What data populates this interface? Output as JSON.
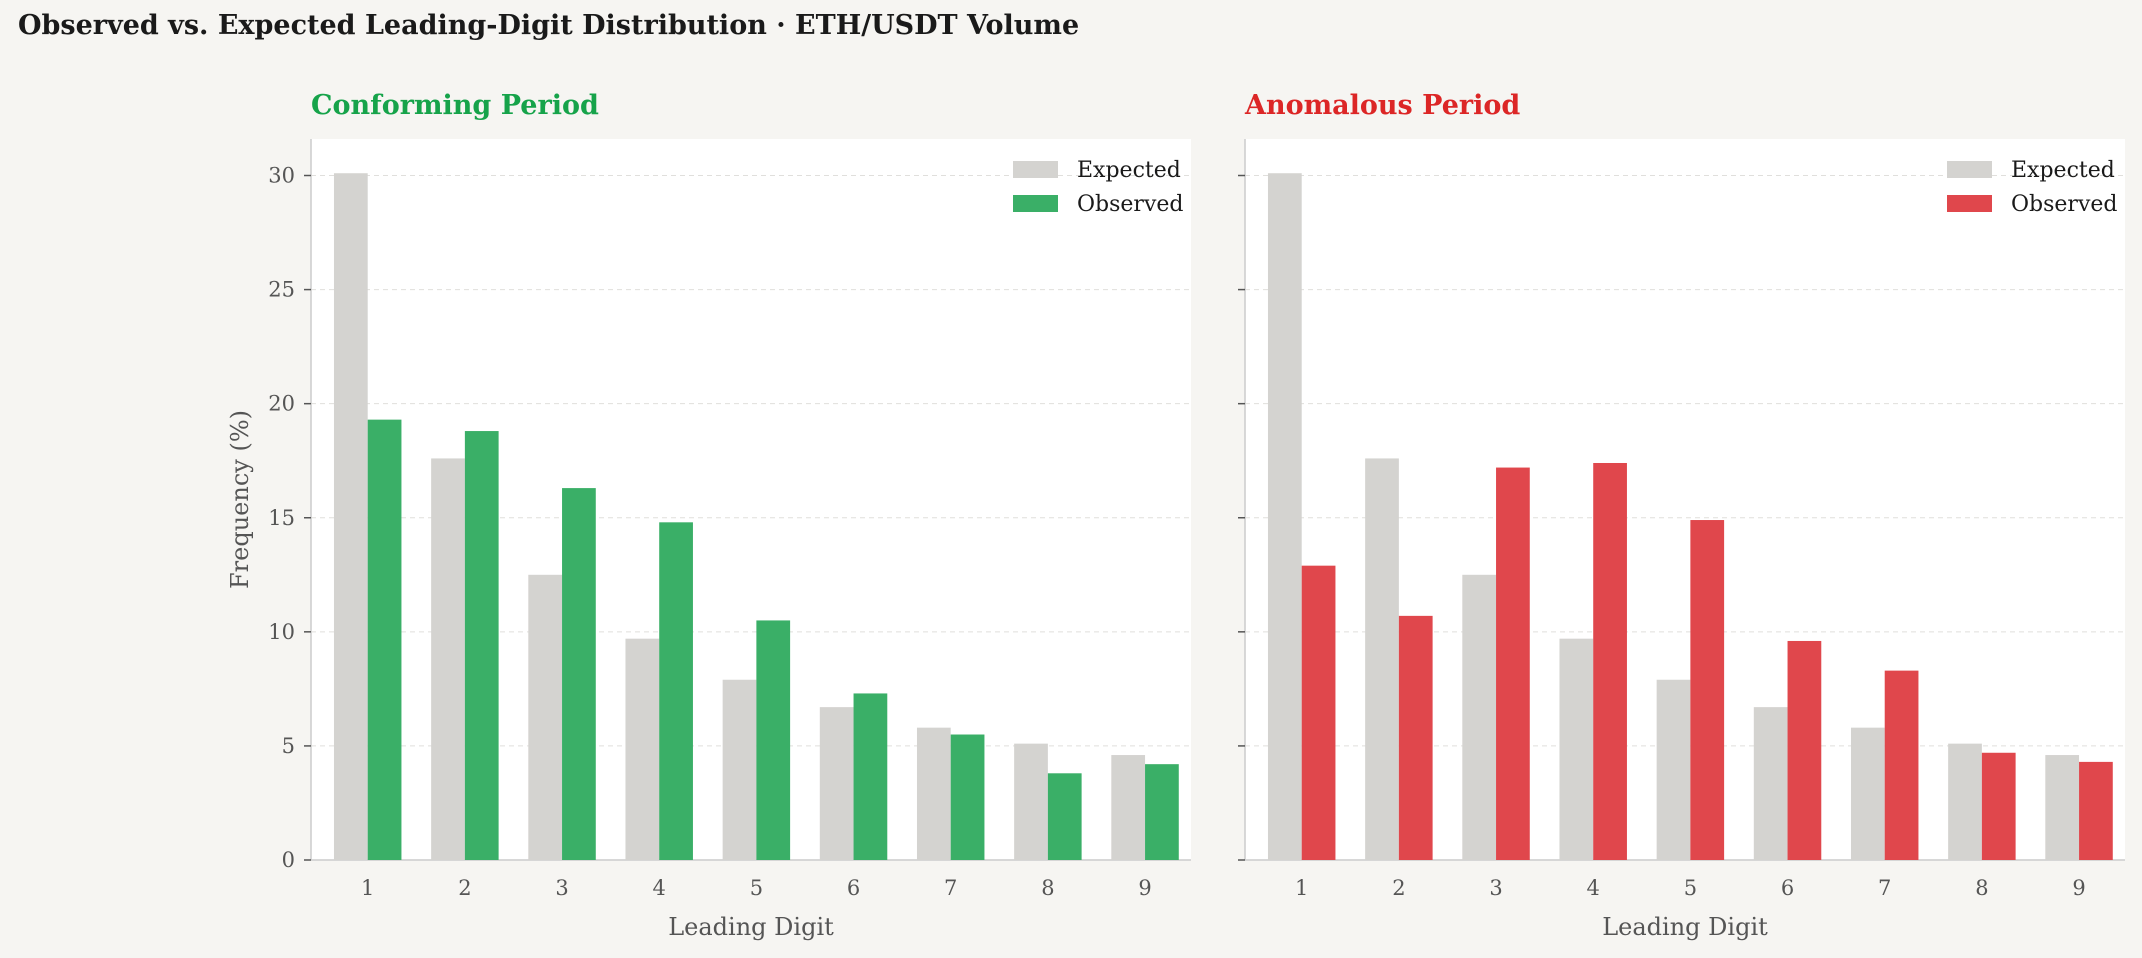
{
  "title": "Observed vs. Expected Leading-Digit Distribution  ·  ETH/USDT Volume",
  "chart_data": [
    {
      "type": "bar",
      "title": "Conforming Period",
      "title_color": "#16a34a",
      "observed_color": "#3aaf67",
      "expected_color": "#d4d3d0",
      "xlabel": "Leading Digit",
      "ylabel": "Frequency (%)",
      "ylim": [
        0,
        31.6
      ],
      "yticks": [
        0,
        5,
        10,
        15,
        20,
        25,
        30
      ],
      "categories": [
        "1",
        "2",
        "3",
        "4",
        "5",
        "6",
        "7",
        "8",
        "9"
      ],
      "series": [
        {
          "name": "Expected",
          "values": [
            30.1,
            17.6,
            12.5,
            9.7,
            7.9,
            6.7,
            5.8,
            5.1,
            4.6
          ]
        },
        {
          "name": "Observed",
          "values": [
            19.3,
            18.8,
            16.3,
            14.8,
            10.5,
            7.3,
            5.5,
            3.8,
            4.2
          ]
        }
      ],
      "grid": true,
      "legend_position": "top-right"
    },
    {
      "type": "bar",
      "title": "Anomalous Period",
      "title_color": "#dc2626",
      "observed_color": "#e0474c",
      "expected_color": "#d4d3d0",
      "xlabel": "Leading Digit",
      "ylabel": "",
      "ylim": [
        0,
        31.6
      ],
      "yticks": [
        0,
        5,
        10,
        15,
        20,
        25,
        30
      ],
      "categories": [
        "1",
        "2",
        "3",
        "4",
        "5",
        "6",
        "7",
        "8",
        "9"
      ],
      "series": [
        {
          "name": "Expected",
          "values": [
            30.1,
            17.6,
            12.5,
            9.7,
            7.9,
            6.7,
            5.8,
            5.1,
            4.6
          ]
        },
        {
          "name": "Observed",
          "values": [
            12.9,
            10.7,
            17.2,
            17.4,
            14.9,
            9.6,
            8.3,
            4.7,
            4.3
          ]
        }
      ],
      "grid": true,
      "legend_position": "top-right"
    }
  ]
}
